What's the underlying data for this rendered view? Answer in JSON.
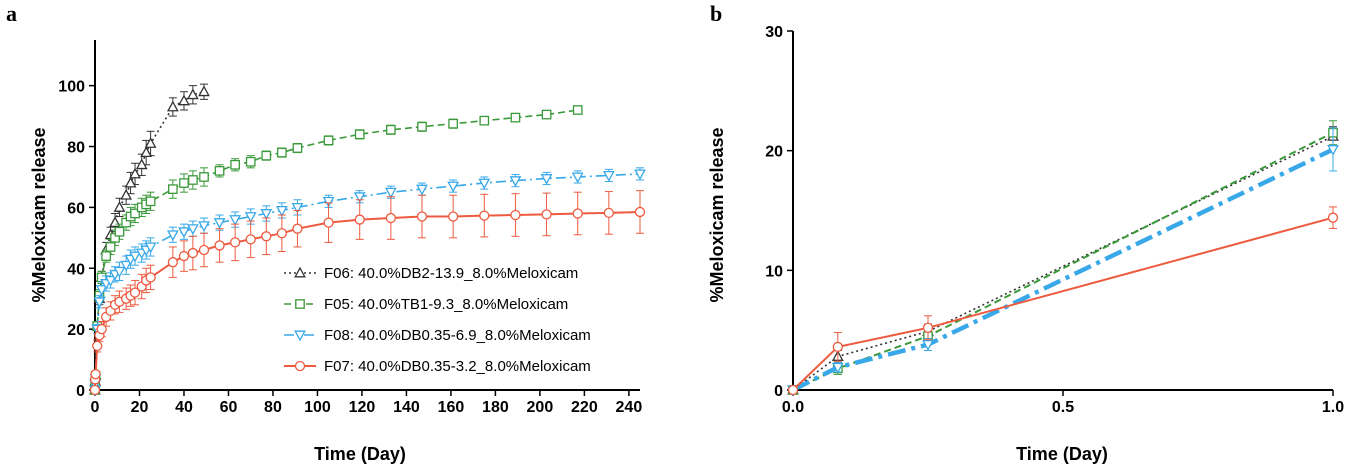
{
  "colors": {
    "F06": "#333333",
    "F05": "#3a9a3a",
    "F08": "#38a8e8",
    "F07": "#ee5a3f",
    "axis": "#000000"
  },
  "chart_data": [
    {
      "panel": "a",
      "type": "line",
      "xlabel": "Time (Day)",
      "ylabel": "%Meloxicam release",
      "xlim": [
        0,
        245
      ],
      "ylim": [
        0,
        115
      ],
      "xticks": [
        0,
        20,
        40,
        60,
        80,
        100,
        120,
        140,
        160,
        180,
        200,
        220,
        240
      ],
      "yticks": [
        0,
        20,
        40,
        60,
        80,
        100
      ],
      "grid": false,
      "legend_position": "bottom-right",
      "series": [
        {
          "key": "F06",
          "name": "F06: 40.0%DB2-13.9_8.0%Meloxicam",
          "marker": "triangle-up",
          "line": "dotted",
          "x": [
            0,
            0.08,
            0.25,
            1,
            2,
            3,
            5,
            7,
            9,
            11,
            14,
            16,
            18,
            21,
            23,
            25,
            35,
            40,
            44,
            49
          ],
          "y": [
            0,
            2.8,
            4.9,
            21,
            30,
            37,
            46,
            51,
            55,
            60,
            64,
            68,
            71,
            74,
            78,
            81,
            93,
            95,
            97,
            98
          ],
          "err": [
            0,
            0.5,
            0.6,
            1.5,
            2,
            2,
            2.5,
            2.5,
            3,
            3,
            3,
            3.5,
            3.5,
            3.5,
            4,
            4,
            3,
            3,
            3,
            2.5
          ]
        },
        {
          "key": "F05",
          "name": "F05: 40.0%TB1-9.3_8.0%Meloxicam",
          "marker": "square",
          "line": "dashed",
          "x": [
            0,
            0.08,
            0.25,
            1,
            2,
            3,
            5,
            7,
            9,
            11,
            14,
            16,
            18,
            21,
            23,
            25,
            35,
            40,
            44,
            49,
            56,
            63,
            70,
            77,
            84,
            91,
            105,
            119,
            133,
            147,
            161,
            175,
            189,
            203,
            217
          ],
          "y": [
            0,
            1.8,
            4.5,
            21,
            31,
            37,
            44,
            47,
            50,
            52,
            55,
            57,
            58,
            60,
            61,
            62,
            66,
            68,
            69,
            70,
            72,
            74,
            75,
            77,
            78,
            79.5,
            82,
            84,
            85.5,
            86.5,
            87.5,
            88.5,
            89.5,
            90.5,
            92
          ],
          "err": [
            0,
            0.5,
            0.6,
            1.5,
            2,
            2,
            2,
            2.5,
            2.5,
            2.5,
            2.5,
            3,
            3,
            3,
            3,
            3,
            3,
            3,
            3,
            3,
            2,
            2,
            2,
            1.5,
            1.5,
            1.5,
            1.5,
            1.5,
            1.5,
            1.5,
            1.5,
            1.2,
            1.2,
            1.2,
            1.2
          ]
        },
        {
          "key": "F08",
          "name": "F08: 40.0%DB0.35-6.9_8.0%Meloxicam",
          "marker": "triangle-down",
          "line": "dash-dot",
          "x": [
            0,
            0.08,
            0.25,
            1,
            2,
            3,
            5,
            7,
            9,
            11,
            14,
            16,
            18,
            21,
            23,
            25,
            35,
            40,
            44,
            49,
            56,
            63,
            70,
            77,
            84,
            91,
            105,
            119,
            133,
            147,
            161,
            175,
            189,
            203,
            217,
            231,
            245
          ],
          "y": [
            0,
            1.9,
            3.8,
            20,
            29,
            33,
            35,
            36,
            38,
            39,
            41,
            43,
            44,
            45,
            46,
            47,
            51,
            52,
            53,
            54,
            55,
            56,
            57,
            58,
            59,
            60,
            62,
            63.5,
            65,
            66,
            67,
            68,
            68.8,
            69.5,
            70,
            70.5,
            71
          ],
          "err": [
            0,
            0.4,
            0.5,
            1.5,
            2,
            2.5,
            2.5,
            2.5,
            2.5,
            3,
            3,
            3,
            3,
            3,
            3,
            3,
            2.5,
            2.5,
            2.5,
            2.5,
            2.5,
            2.5,
            2.5,
            2.5,
            2.5,
            2.5,
            2,
            2,
            2,
            2,
            2,
            2,
            2,
            2,
            2,
            2,
            2
          ]
        },
        {
          "key": "F07",
          "name": "F07: 40.0%DB0.35-3.2_8.0%Meloxicam",
          "marker": "circle",
          "line": "solid",
          "x": [
            0,
            0.08,
            0.25,
            1,
            2,
            3,
            5,
            7,
            9,
            11,
            14,
            16,
            18,
            21,
            23,
            25,
            35,
            40,
            44,
            49,
            56,
            63,
            70,
            77,
            84,
            91,
            105,
            119,
            133,
            147,
            161,
            175,
            189,
            203,
            217,
            231,
            245
          ],
          "y": [
            0,
            3.5,
            5.2,
            14.5,
            18,
            20,
            24,
            26,
            28,
            29,
            30,
            31,
            32,
            34,
            36,
            37,
            42,
            44,
            45,
            46,
            47.5,
            48.5,
            49.5,
            50.5,
            51.5,
            53,
            55,
            56,
            56.5,
            57,
            57,
            57.3,
            57.5,
            57.7,
            58,
            58.2,
            58.5
          ],
          "err": [
            0,
            1.2,
            1,
            2,
            2,
            2.5,
            3,
            3,
            3,
            3.5,
            3.5,
            3.5,
            4,
            4,
            4,
            4,
            5,
            5,
            5.5,
            5.5,
            5.5,
            6,
            6,
            6,
            6,
            6,
            6.5,
            6.5,
            7,
            7,
            7,
            7,
            7,
            7,
            7,
            7,
            7
          ]
        }
      ]
    },
    {
      "panel": "b",
      "type": "line",
      "xlabel": "Time (Day)",
      "ylabel": "%Meloxicam release",
      "xlim": [
        0,
        1.0
      ],
      "ylim": [
        0,
        30
      ],
      "xticks": [
        0.0,
        0.5,
        1.0
      ],
      "xtick_labels": [
        "0.0",
        "0.5",
        "1.0"
      ],
      "yticks": [
        0,
        10,
        20,
        30
      ],
      "grid": false,
      "series": [
        {
          "key": "F06",
          "x": [
            0,
            0.083,
            0.25,
            1.0
          ],
          "y": [
            0,
            2.8,
            4.9,
            21.2
          ],
          "err": [
            0,
            0.5,
            0.6,
            0.8
          ],
          "width": 1.6
        },
        {
          "key": "F05",
          "x": [
            0,
            0.083,
            0.25,
            1.0
          ],
          "y": [
            0,
            1.8,
            4.5,
            21.5
          ],
          "err": [
            0,
            0.5,
            0.5,
            1.0
          ],
          "width": 2
        },
        {
          "key": "F08",
          "x": [
            0,
            0.083,
            0.25,
            1.0
          ],
          "y": [
            0,
            1.9,
            3.8,
            20.1
          ],
          "err": [
            0,
            0.4,
            0.5,
            1.8
          ],
          "width": 4.5
        },
        {
          "key": "F07",
          "x": [
            0,
            0.083,
            0.25,
            1.0
          ],
          "y": [
            0,
            3.6,
            5.2,
            14.4
          ],
          "err": [
            0,
            1.2,
            1.0,
            0.9
          ],
          "width": 2
        }
      ]
    }
  ]
}
